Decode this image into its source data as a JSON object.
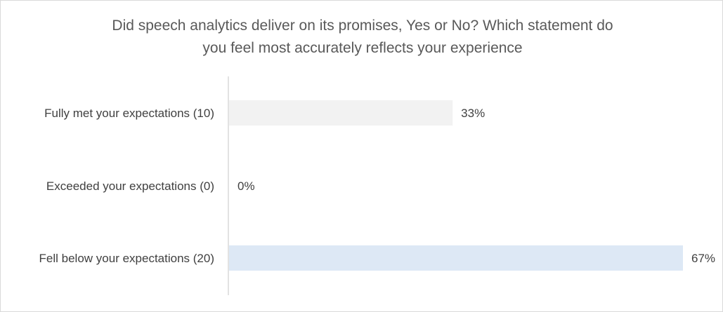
{
  "chart_data": {
    "type": "bar",
    "orientation": "horizontal",
    "title_lines": [
      "Did speech analytics deliver on its promises, Yes or No? Which statement do",
      "you feel  most accurately reflects your experience"
    ],
    "categories": [
      "Fully met your expectations (10)",
      "Exceeded your expectations (0)",
      "Fell below your expectations (20)"
    ],
    "values": [
      33,
      0,
      67
    ],
    "data_labels": [
      "33%",
      "0%",
      "67%"
    ],
    "bar_colors": [
      "#f2f2f2",
      "#f2f2f2",
      "#dde8f5"
    ],
    "xlim": [
      0,
      67
    ],
    "x_axis_visible": false,
    "grid": false,
    "legend": "none"
  },
  "colors": {
    "title": "#595959",
    "labels": "#404040",
    "axis_line": "#d9d9d9",
    "frame_border": "#d9d9d9"
  }
}
